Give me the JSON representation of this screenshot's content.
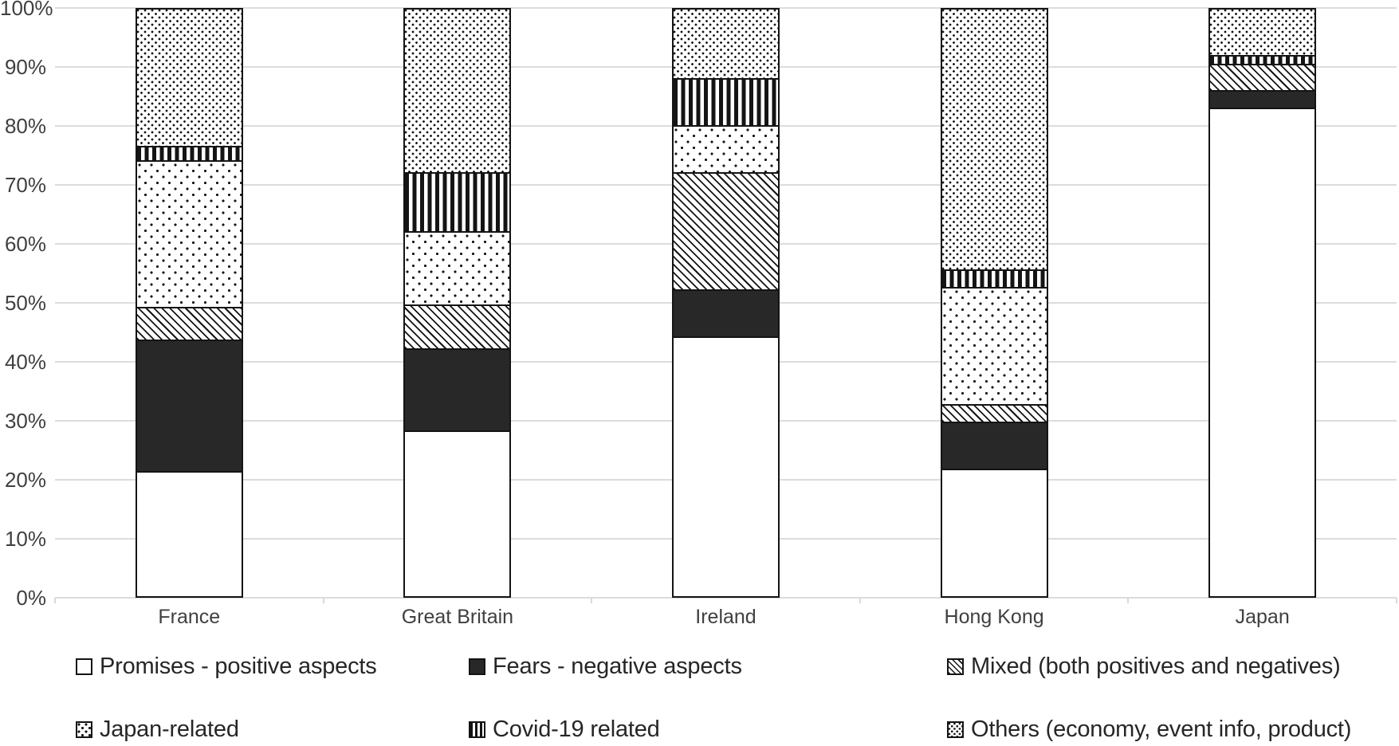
{
  "chart_data": {
    "type": "bar",
    "stacked": true,
    "orientation": "vertical",
    "title": "",
    "xlabel": "",
    "ylabel": "",
    "ylim": [
      0,
      100
    ],
    "ytick_labels": [
      "0%",
      "10%",
      "20%",
      "30%",
      "40%",
      "50%",
      "60%",
      "70%",
      "80%",
      "90%",
      "100%"
    ],
    "grid": true,
    "legend_position": "bottom",
    "categories": [
      "France",
      "Great Britain",
      "Ireland",
      "Hong Kong",
      "Japan"
    ],
    "series": [
      {
        "name": "Promises - positive aspects",
        "pattern": "promises",
        "swatch": "white-empty",
        "values": [
          21,
          28,
          44,
          21.5,
          83
        ]
      },
      {
        "name": "Fears - negative aspects",
        "pattern": "fears",
        "swatch": "solid-dark",
        "values": [
          22.5,
          14,
          8,
          8,
          3
        ]
      },
      {
        "name": "Mixed (both positives and negatives)",
        "pattern": "mixed",
        "swatch": "diagonal-hatch",
        "values": [
          5.5,
          7.5,
          20,
          3,
          4.5
        ]
      },
      {
        "name": "Japan-related",
        "pattern": "japan",
        "swatch": "sparse-dots",
        "values": [
          25,
          12.5,
          8,
          20,
          0
        ]
      },
      {
        "name": "Covid-19 related",
        "pattern": "covid",
        "swatch": "vertical-stripes",
        "values": [
          2.5,
          10,
          8,
          3,
          1.5
        ]
      },
      {
        "name": "Others (economy, event info, product)",
        "pattern": "others",
        "swatch": "dense-dots",
        "values": [
          23.5,
          28,
          12,
          44.5,
          8
        ]
      }
    ],
    "legend_rows": [
      [
        0,
        1,
        2
      ],
      [
        3,
        4,
        5
      ]
    ]
  },
  "colors": {
    "bar_outline": "#141414",
    "fears_fill": "#282828",
    "gridline": "#dcdcdc",
    "axis_text": "#404040",
    "legend_text": "#262626",
    "background": "#ffffff"
  }
}
